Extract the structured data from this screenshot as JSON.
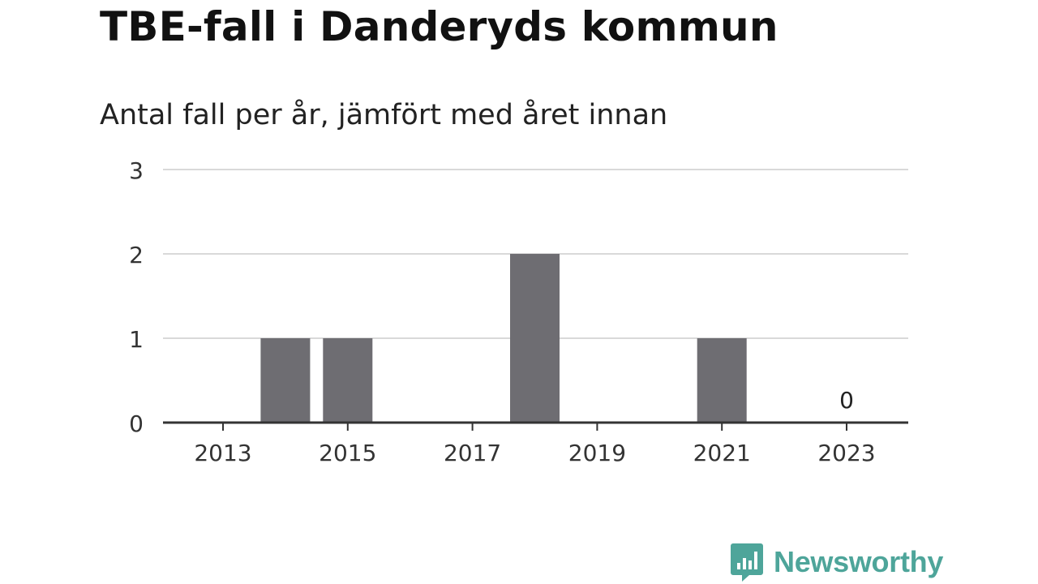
{
  "header": {
    "title": "TBE-fall i Danderyds kommun",
    "subtitle": "Antal fall per år, jämfört med året innan"
  },
  "brand": {
    "name": "Newsworthy",
    "color": "#4ea59a"
  },
  "chart_data": {
    "type": "bar",
    "title": "TBE-fall i Danderyds kommun",
    "subtitle": "Antal fall per år, jämfört med året innan",
    "xlabel": "",
    "ylabel": "",
    "categories": [
      2013,
      2014,
      2015,
      2016,
      2017,
      2018,
      2019,
      2020,
      2021,
      2022,
      2023
    ],
    "values": [
      0,
      1,
      1,
      0,
      0,
      2,
      0,
      0,
      1,
      0,
      0
    ],
    "x_ticks": [
      "2013",
      "2015",
      "2017",
      "2019",
      "2021",
      "2023"
    ],
    "y_ticks": [
      "0",
      "1",
      "2",
      "3"
    ],
    "ylim": [
      0,
      3
    ],
    "grid": true,
    "bar_color": "#6e6d72",
    "annotations": [
      {
        "x": 2023,
        "text": "0"
      }
    ]
  }
}
